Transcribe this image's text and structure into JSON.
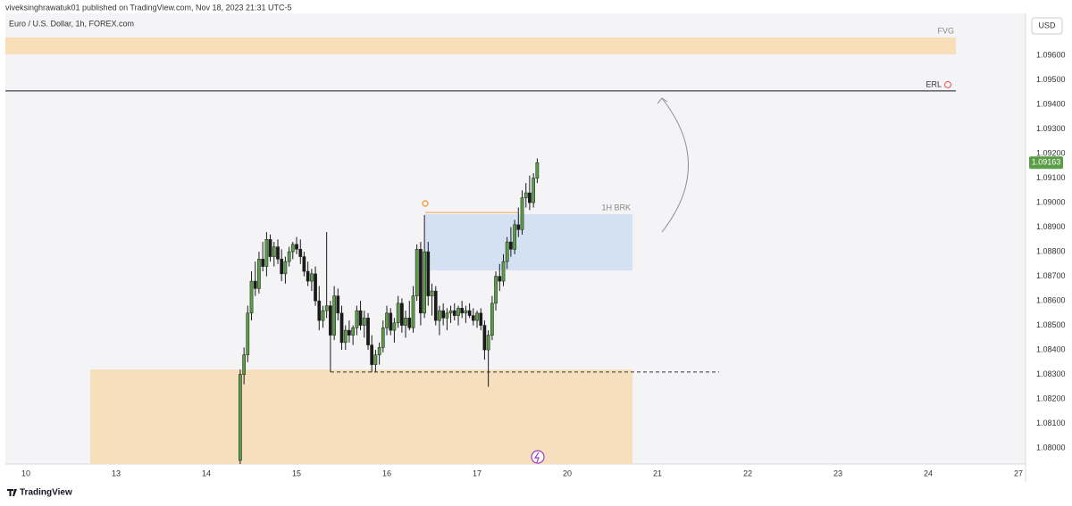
{
  "page": {
    "author_line": "viveksinghrawatuk01 published on TradingView.com, Nov 18, 2023 21:31 UTC-5",
    "brand": "TradingView"
  },
  "chart_data": {
    "type": "candlestick",
    "title": "Euro / U.S. Dollar, 1h, FOREX.com",
    "currency": "USD",
    "up_color": "#5b9e47",
    "down_color": "#1a1a1a",
    "grid": false,
    "xlim": [
      -0.228,
      11.079
    ],
    "ylim": [
      1.07935,
      1.09771
    ],
    "xticks": [
      {
        "value": 0,
        "label": "10"
      },
      {
        "value": 1,
        "label": "13"
      },
      {
        "value": 2,
        "label": "14"
      },
      {
        "value": 3,
        "label": "15"
      },
      {
        "value": 4,
        "label": "16"
      },
      {
        "value": 5,
        "label": "17"
      },
      {
        "value": 6,
        "label": "20"
      },
      {
        "value": 7,
        "label": "21"
      },
      {
        "value": 8,
        "label": "22"
      },
      {
        "value": 9,
        "label": "23"
      },
      {
        "value": 10,
        "label": "24"
      },
      {
        "value": 11,
        "label": "27"
      }
    ],
    "yticks": [
      {
        "value": 1.08,
        "label": "1.08000"
      },
      {
        "value": 1.081,
        "label": "1.08100"
      },
      {
        "value": 1.082,
        "label": "1.08200"
      },
      {
        "value": 1.083,
        "label": "1.08300"
      },
      {
        "value": 1.084,
        "label": "1.08400"
      },
      {
        "value": 1.085,
        "label": "1.08500"
      },
      {
        "value": 1.086,
        "label": "1.08600"
      },
      {
        "value": 1.087,
        "label": "1.08700"
      },
      {
        "value": 1.088,
        "label": "1.08800"
      },
      {
        "value": 1.089,
        "label": "1.08900"
      },
      {
        "value": 1.09,
        "label": "1.09000"
      },
      {
        "value": 1.091,
        "label": "1.09100"
      },
      {
        "value": 1.092,
        "label": "1.09200"
      },
      {
        "value": 1.093,
        "label": "1.09300"
      },
      {
        "value": 1.094,
        "label": "1.09400"
      },
      {
        "value": 1.095,
        "label": "1.09500"
      },
      {
        "value": 1.096,
        "label": "1.09600"
      }
    ],
    "x": [
      2.375,
      2.417,
      2.458,
      2.5,
      2.542,
      2.583,
      2.625,
      2.667,
      2.708,
      2.75,
      2.792,
      2.833,
      2.875,
      2.917,
      2.958,
      3,
      3.042,
      3.083,
      3.125,
      3.167,
      3.208,
      3.25,
      3.292,
      3.333,
      3.375,
      3.417,
      3.458,
      3.5,
      3.542,
      3.583,
      3.625,
      3.667,
      3.708,
      3.75,
      3.792,
      3.833,
      3.875,
      3.917,
      3.958,
      4,
      4.042,
      4.083,
      4.125,
      4.167,
      4.208,
      4.25,
      4.292,
      4.333,
      4.375,
      4.417,
      4.458,
      4.5,
      4.542,
      4.583,
      4.625,
      4.667,
      4.708,
      4.75,
      4.792,
      4.833,
      4.875,
      4.917,
      4.958,
      5,
      5.042,
      5.083,
      5.125,
      5.167,
      5.208,
      5.25,
      5.292,
      5.333,
      5.375,
      5.417,
      5.458,
      5.5,
      5.542,
      5.583,
      5.625,
      5.667
    ],
    "open": [
      1.0795,
      1.083,
      1.0838,
      1.0855,
      1.0868,
      1.0865,
      1.0877,
      1.0874,
      1.0885,
      1.0878,
      1.0882,
      1.0877,
      1.0871,
      1.0876,
      1.088,
      1.0883,
      1.0881,
      1.0878,
      1.0872,
      1.0868,
      1.0871,
      1.086,
      1.0852,
      1.0856,
      1.0858,
      1.0846,
      1.0862,
      1.0855,
      1.0843,
      1.0848,
      1.0846,
      1.0849,
      1.0856,
      1.085,
      1.0853,
      1.0842,
      1.0834,
      1.0838,
      1.0841,
      1.0849,
      1.0855,
      1.0848,
      1.0851,
      1.0859,
      1.085,
      1.0853,
      1.0849,
      1.0862,
      1.0881,
      1.0855,
      1.088,
      1.0862,
      1.0864,
      1.0852,
      1.0856,
      1.0853,
      1.0855,
      1.0856,
      1.0854,
      1.0857,
      1.0855,
      1.0856,
      1.0854,
      1.0852,
      1.0855,
      1.085,
      1.084,
      1.0846,
      1.0859,
      1.087,
      1.0868,
      1.0876,
      1.0884,
      1.0881,
      1.0891,
      1.0889,
      1.0902,
      1.0904,
      1.09,
      1.091
    ],
    "high": [
      1.0832,
      1.0841,
      1.0858,
      1.0872,
      1.0876,
      1.088,
      1.0884,
      1.0888,
      1.0887,
      1.0884,
      1.0885,
      1.0881,
      1.0878,
      1.0882,
      1.0884,
      1.0886,
      1.0885,
      1.088,
      1.0876,
      1.0873,
      1.0874,
      1.0866,
      1.0858,
      1.0888,
      1.086,
      1.0866,
      1.0865,
      1.0858,
      1.085,
      1.0852,
      1.085,
      1.0858,
      1.086,
      1.0856,
      1.0855,
      1.0846,
      1.084,
      1.0843,
      1.0852,
      1.0858,
      1.0857,
      1.0853,
      1.0862,
      1.0861,
      1.0856,
      1.086,
      1.0866,
      1.0883,
      1.0884,
      1.0895,
      1.0884,
      1.0867,
      1.0866,
      1.0858,
      1.0859,
      1.0857,
      1.0858,
      1.0859,
      1.0858,
      1.086,
      1.0858,
      1.0859,
      1.0857,
      1.0856,
      1.0857,
      1.0852,
      1.0848,
      1.0862,
      1.0872,
      1.0875,
      1.0879,
      1.0886,
      1.089,
      1.0893,
      1.0898,
      1.0905,
      1.0908,
      1.0911,
      1.0912,
      1.0918
    ],
    "low": [
      1.079,
      1.0826,
      1.0835,
      1.0852,
      1.0862,
      1.0863,
      1.0872,
      1.087,
      1.0876,
      1.0874,
      1.0875,
      1.0868,
      1.0867,
      1.0874,
      1.0877,
      1.0879,
      1.0875,
      1.087,
      1.0866,
      1.0864,
      1.0858,
      1.0848,
      1.0849,
      1.0853,
      1.0831,
      1.0844,
      1.0852,
      1.084,
      1.084,
      1.0843,
      1.0842,
      1.0846,
      1.0848,
      1.0845,
      1.084,
      1.0831,
      1.0831,
      1.0834,
      1.0839,
      1.0846,
      1.0846,
      1.0843,
      1.0849,
      1.0847,
      1.0845,
      1.0848,
      1.0847,
      1.086,
      1.085,
      1.0853,
      1.0858,
      1.0854,
      1.085,
      1.0846,
      1.085,
      1.0848,
      1.0851,
      1.0852,
      1.085,
      1.0853,
      1.0851,
      1.0853,
      1.085,
      1.0849,
      1.0848,
      1.0836,
      1.0825,
      1.0844,
      1.0856,
      1.0864,
      1.0866,
      1.0873,
      1.0878,
      1.0879,
      1.0886,
      1.0887,
      1.0898,
      1.0897,
      1.0898,
      1.0908
    ],
    "close": [
      1.083,
      1.0838,
      1.0855,
      1.0868,
      1.0865,
      1.0877,
      1.0874,
      1.0885,
      1.0878,
      1.0882,
      1.0877,
      1.0871,
      1.0876,
      1.088,
      1.0883,
      1.0881,
      1.0878,
      1.0872,
      1.0868,
      1.0871,
      1.086,
      1.0852,
      1.0856,
      1.0858,
      1.0846,
      1.0862,
      1.0855,
      1.0843,
      1.0848,
      1.0846,
      1.0849,
      1.0856,
      1.085,
      1.0853,
      1.0842,
      1.0834,
      1.0838,
      1.0841,
      1.0849,
      1.0855,
      1.0848,
      1.0851,
      1.0859,
      1.085,
      1.0853,
      1.0849,
      1.0862,
      1.0881,
      1.0855,
      1.088,
      1.0862,
      1.0864,
      1.0852,
      1.0856,
      1.0853,
      1.0855,
      1.0856,
      1.0854,
      1.0857,
      1.0855,
      1.0856,
      1.0854,
      1.0852,
      1.0855,
      1.085,
      1.084,
      1.0846,
      1.0859,
      1.087,
      1.0868,
      1.0876,
      1.0884,
      1.0881,
      1.0891,
      1.0889,
      1.0902,
      1.0904,
      1.09,
      1.091,
      1.09163
    ],
    "zones": [
      {
        "name": "FVG",
        "x": [
          -0.228,
          10.307
        ],
        "y": [
          1.09604,
          1.09673
        ],
        "color": "#f8dfba"
      },
      {
        "name": "1H BRK",
        "x": [
          4.426,
          6.723
        ],
        "y": [
          1.08724,
          1.08953
        ],
        "color": "#d3e1f3"
      },
      {
        "x": [
          0.713,
          6.723
        ],
        "y": [
          1.0789,
          1.0832
        ],
        "color": "#f5dfbd"
      }
    ],
    "lines": [
      {
        "name": "ERL",
        "x": [
          -0.228,
          10.307
        ],
        "y": 1.09455,
        "color": "#131722",
        "style": "solid"
      },
      {
        "x": [
          3.376,
          7.683
        ],
        "y": 1.0831,
        "color": "#333333",
        "style": "dashed"
      },
      {
        "x": [
          4.426,
          5.455
        ],
        "y": 1.0896,
        "color": "#f0a050",
        "style": "solid"
      }
    ]
  }
}
